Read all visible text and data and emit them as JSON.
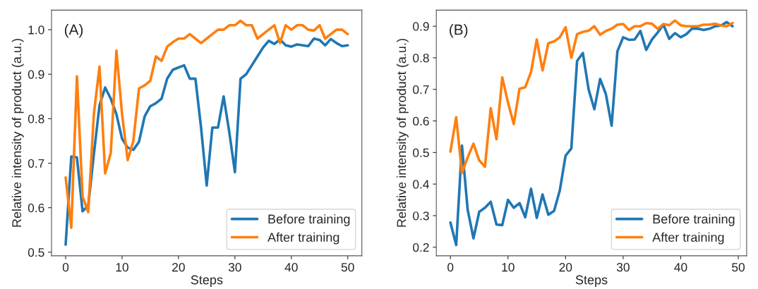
{
  "chart_data": [
    {
      "type": "line",
      "xlabel": "Steps",
      "ylabel": "Relative intensity of product (a.u.)",
      "annotations": [
        "(A)"
      ],
      "x": [
        0,
        1,
        2,
        3,
        4,
        5,
        6,
        7,
        8,
        9,
        10,
        11,
        12,
        13,
        14,
        15,
        16,
        17,
        18,
        19,
        20,
        21,
        22,
        23,
        24,
        25,
        26,
        27,
        28,
        29,
        30,
        31,
        32,
        33,
        34,
        35,
        36,
        37,
        38,
        39,
        40,
        41,
        42,
        43,
        44,
        45,
        46,
        47,
        48,
        49,
        50
      ],
      "series": [
        {
          "name": "Before training",
          "color": "#1f77b4",
          "values": [
            0.517,
            0.715,
            0.713,
            0.592,
            0.605,
            0.72,
            0.83,
            0.87,
            0.845,
            0.81,
            0.755,
            0.735,
            0.73,
            0.748,
            0.805,
            0.828,
            0.835,
            0.845,
            0.89,
            0.91,
            0.915,
            0.92,
            0.89,
            0.89,
            0.78,
            0.65,
            0.78,
            0.78,
            0.85,
            0.77,
            0.68,
            0.89,
            0.9,
            0.92,
            0.94,
            0.96,
            0.975,
            0.968,
            0.978,
            0.965,
            0.962,
            0.967,
            0.965,
            0.963,
            0.98,
            0.977,
            0.965,
            0.979,
            0.97,
            0.963,
            0.965
          ]
        },
        {
          "name": "After training",
          "color": "#ff7f0e",
          "values": [
            0.668,
            0.555,
            0.895,
            0.625,
            0.59,
            0.81,
            0.917,
            0.677,
            0.723,
            0.953,
            0.81,
            0.707,
            0.75,
            0.868,
            0.875,
            0.885,
            0.94,
            0.93,
            0.962,
            0.972,
            0.98,
            0.98,
            0.99,
            0.98,
            0.97,
            0.98,
            0.99,
            1.0,
            1.0,
            1.01,
            1.01,
            1.02,
            1.01,
            1.01,
            0.98,
            0.99,
            1.0,
            1.01,
            0.97,
            1.01,
            1.0,
            1.01,
            1.01,
            1.0,
            0.998,
            1.01,
            0.98,
            0.99,
            1.0,
            1.0,
            0.99
          ]
        }
      ],
      "xlim": [
        -2.5,
        52.5
      ],
      "xticks": [
        0,
        10,
        20,
        30,
        40,
        50
      ],
      "ylim": [
        0.492,
        1.044
      ],
      "yticks": [
        {
          "value": 0.5,
          "label": "0.5"
        },
        {
          "value": 0.6,
          "label": "0.6"
        },
        {
          "value": 0.7,
          "label": "0.7"
        },
        {
          "value": 0.8,
          "label": "0.8"
        },
        {
          "value": 0.9,
          "label": "0.9"
        },
        {
          "value": 1.0,
          "label": "1.0"
        }
      ],
      "legend": "bottom right",
      "grid": false,
      "marker": "none",
      "line_style": "solid"
    },
    {
      "type": "line",
      "xlabel": "Steps",
      "ylabel": "Relative intensity of product (a.u.)",
      "annotations": [
        "(B)"
      ],
      "x": [
        0,
        1,
        2,
        3,
        4,
        5,
        6,
        7,
        8,
        9,
        10,
        11,
        12,
        13,
        14,
        15,
        16,
        17,
        18,
        19,
        20,
        21,
        22,
        23,
        24,
        25,
        26,
        27,
        28,
        29,
        30,
        31,
        32,
        33,
        34,
        35,
        36,
        37,
        38,
        39,
        40,
        41,
        42,
        43,
        44,
        45,
        46,
        47,
        48,
        49
      ],
      "series": [
        {
          "name": "Before training",
          "color": "#1f77b4",
          "values": [
            0.278,
            0.207,
            0.522,
            0.318,
            0.228,
            0.312,
            0.325,
            0.344,
            0.272,
            0.27,
            0.35,
            0.325,
            0.34,
            0.295,
            0.385,
            0.293,
            0.367,
            0.303,
            0.315,
            0.38,
            0.49,
            0.513,
            0.79,
            0.815,
            0.7,
            0.637,
            0.733,
            0.685,
            0.585,
            0.82,
            0.865,
            0.857,
            0.858,
            0.885,
            0.825,
            0.858,
            0.88,
            0.905,
            0.86,
            0.878,
            0.865,
            0.875,
            0.893,
            0.892,
            0.888,
            0.892,
            0.9,
            0.902,
            0.913,
            0.9
          ]
        },
        {
          "name": "After training",
          "color": "#ff7f0e",
          "values": [
            0.503,
            0.612,
            0.435,
            0.485,
            0.528,
            0.475,
            0.455,
            0.64,
            0.542,
            0.738,
            0.658,
            0.59,
            0.702,
            0.707,
            0.755,
            0.858,
            0.76,
            0.846,
            0.852,
            0.865,
            0.897,
            0.8,
            0.875,
            0.882,
            0.886,
            0.9,
            0.873,
            0.885,
            0.892,
            0.905,
            0.907,
            0.888,
            0.9,
            0.9,
            0.91,
            0.908,
            0.892,
            0.907,
            0.903,
            0.918,
            0.903,
            0.9,
            0.9,
            0.9,
            0.905,
            0.905,
            0.908,
            0.902,
            0.9,
            0.91
          ]
        }
      ],
      "xlim": [
        -2.45,
        51.45
      ],
      "xticks": [
        0,
        10,
        20,
        30,
        40,
        50
      ],
      "ylim": [
        0.173,
        0.951
      ],
      "yticks": [
        0.2,
        0.3,
        0.4,
        0.5,
        0.6,
        0.7,
        0.8,
        0.9
      ],
      "legend": "bottom right",
      "grid": false,
      "marker": "none",
      "line_style": "solid"
    }
  ]
}
